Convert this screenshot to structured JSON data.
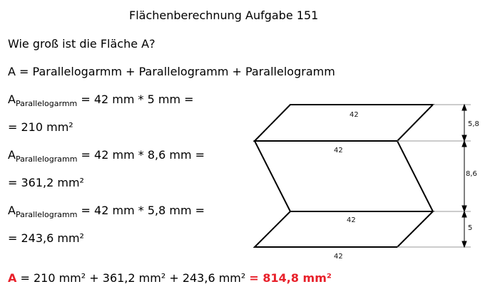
{
  "title": "Flächenberechnung Aufgabe 151",
  "question": "Wie groß ist die Fläche A?",
  "formula": "A = Parallelogarmm + Parallelogramm + Parallelogramm",
  "calc": [
    {
      "a": "A",
      "sub": "Parallelogarmm",
      "expr": " = 42 mm * 5 mm =",
      "result": "= 210 mm²"
    },
    {
      "a": "A",
      "sub": "Parallelogramm",
      "expr": " = 42 mm * 8,6 mm =",
      "result": "= 361,2 mm²"
    },
    {
      "a": "A",
      "sub": "Parallelogramm",
      "expr": " = 42 mm * 5,8 mm =",
      "result": "= 243,6 mm²"
    }
  ],
  "final": {
    "a": "A",
    "expr": " = 210 mm² + 361,2 mm² + 243,6 mm² ",
    "result": "= 814,8 mm²"
  },
  "diagram": {
    "top_width": "42",
    "middle_width": "42",
    "lower_width": "42",
    "bottom_width": "42",
    "dim_top": "5,8",
    "dim_middle": "8,6",
    "dim_bottom": "5"
  },
  "colors": {
    "accent": "#e8202a",
    "text": "#000000"
  }
}
